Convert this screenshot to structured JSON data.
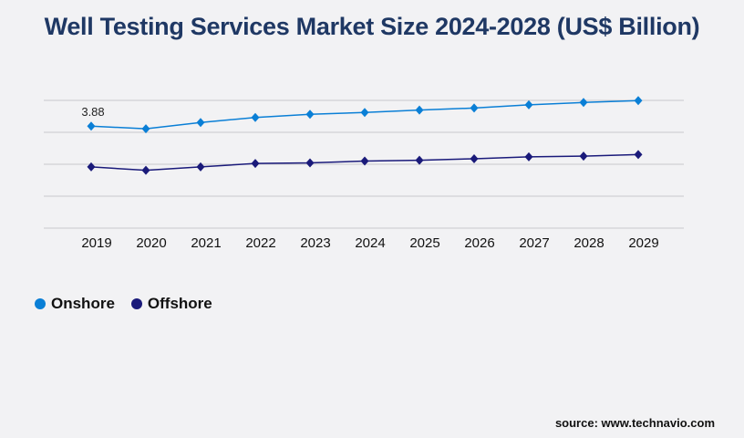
{
  "chart_data": {
    "type": "line",
    "title": "Well Testing Services Market Size 2024-2028 (US$ Billion)",
    "categories": [
      "2019",
      "2020",
      "2021",
      "2022",
      "2023",
      "2024",
      "2025",
      "2026",
      "2027",
      "2028",
      "2029"
    ],
    "series": [
      {
        "name": "Onshore",
        "color": "#0a7fd6",
        "values": [
          3.88,
          3.78,
          4.02,
          4.21,
          4.33,
          4.4,
          4.49,
          4.57,
          4.69,
          4.78,
          4.85
        ]
      },
      {
        "name": "Offshore",
        "color": "#1a1a7a",
        "values": [
          2.33,
          2.2,
          2.33,
          2.46,
          2.48,
          2.55,
          2.58,
          2.64,
          2.71,
          2.74,
          2.8
        ]
      }
    ],
    "data_labels": [
      {
        "series": "Onshore",
        "category": "2019",
        "text": "3.88"
      }
    ],
    "ylim": [
      0,
      4.86
    ],
    "gridlines": [
      0,
      1.215,
      2.43,
      3.645,
      4.86
    ],
    "y_tick_labels_shown": false,
    "grid": true,
    "legend_position": "bottom-left",
    "xlabel": "",
    "ylabel": ""
  },
  "source": "source: www.technavio.com"
}
